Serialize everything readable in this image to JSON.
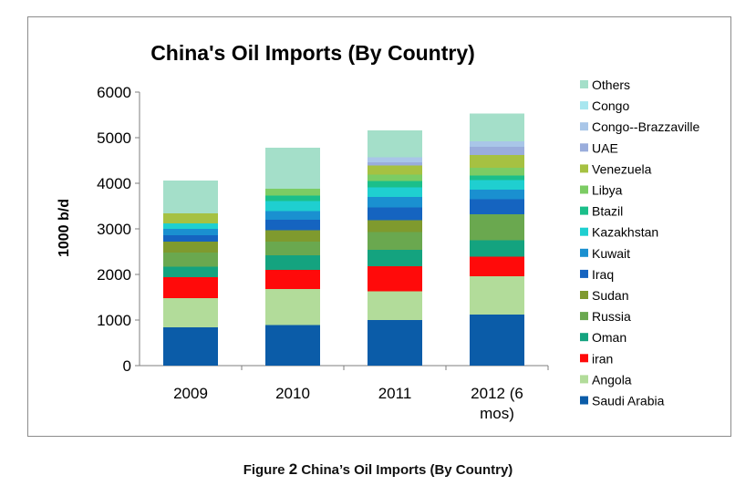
{
  "caption": {
    "prefix": "Figure",
    "number": "2",
    "text": "China’s Oil Imports (By Country)"
  },
  "chart_data": {
    "type": "bar",
    "stacked": true,
    "title": "China's Oil Imports (By Country)",
    "xlabel": "",
    "ylabel": "1000 b/d",
    "ylim": [
      0,
      6000
    ],
    "yticks": [
      0,
      1000,
      2000,
      3000,
      4000,
      5000,
      6000
    ],
    "tick_labels": [
      "0",
      "1000",
      "2000",
      "3000",
      "4000",
      "5000",
      "6000"
    ],
    "grid": false,
    "legend_position": "right",
    "categories": [
      "2009",
      "2010",
      "2011",
      "2012 (6 mos)"
    ],
    "category_lines": [
      [
        "2009"
      ],
      [
        "2010"
      ],
      [
        "2011"
      ],
      [
        "2012 (6",
        "mos)"
      ]
    ],
    "series": [
      {
        "name": "Saudi Arabia",
        "color": "#0b5ca8",
        "values": [
          840,
          890,
          1000,
          1120
        ]
      },
      {
        "name": "Angola",
        "color": "#b2dc9a",
        "values": [
          640,
          790,
          630,
          840
        ]
      },
      {
        "name": "iran",
        "color": "#ff0a0a",
        "values": [
          460,
          420,
          550,
          430
        ]
      },
      {
        "name": "Oman",
        "color": "#14a37f",
        "values": [
          230,
          320,
          360,
          360
        ]
      },
      {
        "name": "Russia",
        "color": "#6aa84f",
        "values": [
          310,
          300,
          390,
          570
        ]
      },
      {
        "name": "Sudan",
        "color": "#7f9a2e",
        "values": [
          240,
          250,
          260,
          0
        ]
      },
      {
        "name": "Iraq",
        "color": "#1564c0",
        "values": [
          140,
          230,
          280,
          330
        ]
      },
      {
        "name": "Kuwait",
        "color": "#1a90d0",
        "values": [
          140,
          190,
          230,
          210
        ]
      },
      {
        "name": "Kazakhstan",
        "color": "#1fcfd0",
        "values": [
          120,
          220,
          210,
          210
        ]
      },
      {
        "name": "Btazil",
        "color": "#1bbf8a",
        "values": [
          0,
          120,
          140,
          100
        ]
      },
      {
        "name": "Libya",
        "color": "#7ccc64",
        "values": [
          0,
          150,
          140,
          170
        ]
      },
      {
        "name": "Venezuela",
        "color": "#a6c142",
        "values": [
          220,
          0,
          200,
          280
        ]
      },
      {
        "name": "UAE",
        "color": "#9aaddc",
        "values": [
          0,
          0,
          70,
          180
        ]
      },
      {
        "name": "Congo--Brazzaville",
        "color": "#a9c6e8",
        "values": [
          0,
          0,
          110,
          120
        ]
      },
      {
        "name": "Congo",
        "color": "#a8e6ef",
        "values": [
          0,
          0,
          0,
          0
        ]
      },
      {
        "name": "Others",
        "color": "#a4dfc9",
        "values": [
          720,
          900,
          590,
          610
        ]
      }
    ]
  }
}
